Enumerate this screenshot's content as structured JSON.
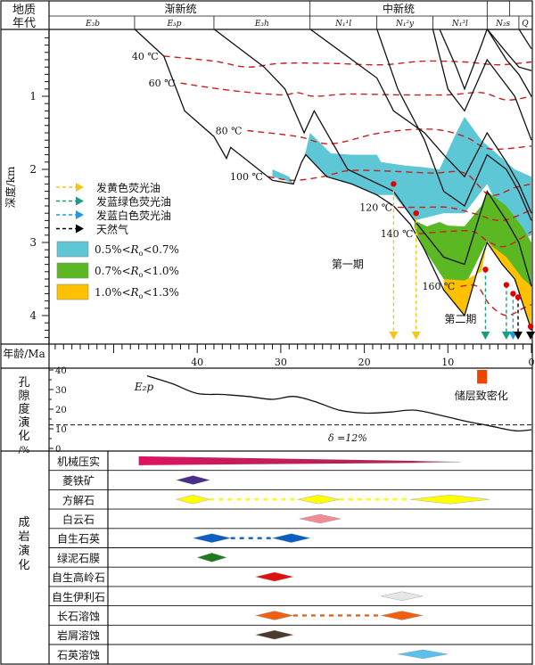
{
  "header": {
    "left_label_line1": "地质",
    "left_label_line2": "年代",
    "epochs": [
      {
        "label": "渐新统",
        "from": 57.5,
        "to": 26.5
      },
      {
        "label": "中新统",
        "from": 26.5,
        "to": 5.3
      },
      {
        "label": "",
        "from": 5.3,
        "to": 2.6
      },
      {
        "label": "",
        "from": 2.6,
        "to": 0
      }
    ],
    "formations": [
      {
        "label": "E₃b",
        "from": 57.5,
        "to": 47.5
      },
      {
        "label": "E₃p",
        "from": 47.5,
        "to": 38.0
      },
      {
        "label": "E₃h",
        "from": 38.0,
        "to": 26.5
      },
      {
        "label": "N₁¹l",
        "from": 26.5,
        "to": 18.5
      },
      {
        "label": "N₁²y",
        "from": 18.5,
        "to": 11.8
      },
      {
        "label": "N₁³l",
        "from": 11.8,
        "to": 5.3
      },
      {
        "label": "N₂s",
        "from": 5.3,
        "to": 1.5
      },
      {
        "label": "Q",
        "from": 1.5,
        "to": 0
      }
    ]
  },
  "chart_data": {
    "type": "burial-history",
    "title": "",
    "xlabel": "年龄/Ma",
    "ylabel": "深度/km",
    "x_range": [
      57.5,
      0
    ],
    "y_range": [
      0,
      4.35
    ],
    "x_ticks": [
      40,
      30,
      20,
      10,
      0
    ],
    "y_ticks": [
      1,
      2,
      3,
      4
    ],
    "burial_curves": [
      [
        [
          47.5,
          0.08
        ],
        [
          44,
          0.45
        ],
        [
          41.5,
          1.2
        ],
        [
          38,
          1.55
        ],
        [
          36.5,
          1.85
        ],
        [
          36,
          1.7
        ],
        [
          31,
          2.15
        ],
        [
          28.5,
          2.2
        ],
        [
          27.5,
          1.9
        ],
        [
          27,
          1.8
        ],
        [
          24.5,
          2.1
        ],
        [
          21.5,
          2.2
        ],
        [
          18.5,
          2.35
        ],
        [
          16.5,
          2.5
        ],
        [
          14.5,
          2.75
        ],
        [
          12.8,
          3.1
        ],
        [
          10.5,
          3.65
        ],
        [
          8,
          4.0
        ],
        [
          6.5,
          3.4
        ],
        [
          5.3,
          3.0
        ],
        [
          3.5,
          3.3
        ],
        [
          2,
          3.5
        ],
        [
          0,
          4.2
        ]
      ],
      [
        [
          38,
          0.08
        ],
        [
          32,
          0.6
        ],
        [
          29.5,
          0.9
        ],
        [
          27.2,
          1.5
        ],
        [
          26,
          1.2
        ],
        [
          22,
          2.0
        ],
        [
          16.5,
          2.3
        ],
        [
          14,
          2.7
        ],
        [
          10.5,
          3.2
        ],
        [
          8,
          3.3
        ],
        [
          5.3,
          2.3
        ],
        [
          3,
          2.7
        ],
        [
          1.5,
          3.0
        ],
        [
          0,
          3.6
        ]
      ],
      [
        [
          26.5,
          0.08
        ],
        [
          18.5,
          0.75
        ],
        [
          16.5,
          1.2
        ],
        [
          12.8,
          1.5
        ],
        [
          10.5,
          1.8
        ],
        [
          8,
          2.1
        ],
        [
          5.3,
          1.5
        ],
        [
          3,
          1.9
        ],
        [
          1.5,
          2.2
        ],
        [
          0,
          2.6
        ]
      ],
      [
        [
          18.5,
          0.08
        ],
        [
          16,
          0.9
        ],
        [
          12.8,
          1.6
        ],
        [
          10.5,
          2.3
        ],
        [
          8,
          2.5
        ],
        [
          5.3,
          1.8
        ],
        [
          3,
          2.0
        ],
        [
          1.5,
          2.3
        ],
        [
          0,
          2.7
        ]
      ],
      [
        [
          11.8,
          0.08
        ],
        [
          10,
          0.9
        ],
        [
          8,
          1.2
        ],
        [
          5.3,
          0.5
        ],
        [
          2,
          1.0
        ],
        [
          0,
          1.6
        ]
      ],
      [
        [
          11,
          0.08
        ],
        [
          9,
          0.6
        ],
        [
          8,
          0.9
        ],
        [
          6,
          0.3
        ],
        [
          5.3,
          0.08
        ],
        [
          3,
          0.5
        ],
        [
          1.5,
          0.7
        ],
        [
          0,
          1.0
        ]
      ],
      [
        [
          5.3,
          0.08
        ],
        [
          3,
          0.4
        ],
        [
          1.5,
          0.6
        ],
        [
          0,
          0.65
        ]
      ],
      [
        [
          1.5,
          0.08
        ],
        [
          0,
          0.35
        ]
      ]
    ],
    "isotherms": [
      {
        "label": "40 ℃",
        "points": [
          [
            44,
            0.45
          ],
          [
            38,
            0.52
          ],
          [
            34,
            0.6
          ],
          [
            30,
            0.55
          ],
          [
            24,
            0.55
          ],
          [
            18,
            0.57
          ],
          [
            13,
            0.52
          ],
          [
            8,
            0.53
          ],
          [
            4,
            0.57
          ],
          [
            0,
            0.53
          ]
        ]
      },
      {
        "label": "60 ℃",
        "points": [
          [
            42,
            0.82
          ],
          [
            36,
            0.92
          ],
          [
            30,
            0.98
          ],
          [
            28,
            0.95
          ],
          [
            26,
            1.0
          ],
          [
            22,
            0.97
          ],
          [
            16,
            0.98
          ],
          [
            10,
            0.98
          ],
          [
            6,
            0.95
          ],
          [
            3,
            1.05
          ],
          [
            0,
            1.0
          ]
        ]
      },
      {
        "label": "80 ℃",
        "points": [
          [
            34,
            1.47
          ],
          [
            28,
            1.55
          ],
          [
            24,
            1.65
          ],
          [
            18,
            1.5
          ],
          [
            12,
            1.45
          ],
          [
            8,
            1.55
          ],
          [
            5,
            1.72
          ],
          [
            0,
            1.68
          ]
        ]
      },
      {
        "label": "100 ℃",
        "points": [
          [
            31.5,
            2.1
          ],
          [
            28.5,
            2.15
          ],
          [
            25,
            2.1
          ],
          [
            22,
            2.02
          ],
          [
            18,
            2.02
          ],
          [
            12,
            2.05
          ],
          [
            8,
            2.05
          ],
          [
            5,
            2.35
          ],
          [
            2,
            2.25
          ],
          [
            0,
            2.2
          ]
        ]
      },
      {
        "label": "120 ℃",
        "points": [
          [
            16,
            2.52
          ],
          [
            13,
            2.52
          ],
          [
            10,
            2.52
          ],
          [
            7,
            2.6
          ],
          [
            4,
            2.7
          ],
          [
            2,
            2.65
          ],
          [
            0,
            2.55
          ]
        ]
      },
      {
        "label": "140 ℃",
        "points": [
          [
            13.5,
            2.88
          ],
          [
            10,
            2.85
          ],
          [
            7,
            2.85
          ],
          [
            5,
            3.0
          ],
          [
            3,
            3.05
          ],
          [
            0,
            2.85
          ]
        ]
      },
      {
        "label": "160 ℃",
        "points": [
          [
            8.5,
            3.6
          ],
          [
            6.5,
            3.6
          ],
          [
            5,
            3.85
          ],
          [
            3,
            4.0
          ],
          [
            1,
            3.9
          ],
          [
            0,
            3.85
          ]
        ]
      }
    ],
    "maturity_zones": [
      {
        "name": "0.5%<Ro<0.7%",
        "color": "#5ec7d6",
        "polygon": [
          [
            31,
            2.0
          ],
          [
            29,
            2.1
          ],
          [
            28.5,
            2.2
          ],
          [
            27.5,
            1.9
          ],
          [
            27,
            1.75
          ],
          [
            26.5,
            1.5
          ],
          [
            24,
            1.78
          ],
          [
            21.5,
            1.8
          ],
          [
            18.5,
            1.8
          ],
          [
            18,
            1.9
          ],
          [
            15,
            1.95
          ],
          [
            13,
            1.97
          ],
          [
            11,
            2.0
          ],
          [
            9,
            1.5
          ],
          [
            8,
            1.28
          ],
          [
            6,
            1.6
          ],
          [
            4,
            1.8
          ],
          [
            2,
            2.0
          ],
          [
            0,
            2.1
          ],
          [
            0,
            2.9
          ],
          [
            2,
            3.0
          ],
          [
            5.3,
            2.2
          ],
          [
            8,
            2.6
          ],
          [
            10.5,
            2.6
          ],
          [
            14,
            2.7
          ],
          [
            16.5,
            2.35
          ],
          [
            18.5,
            2.35
          ],
          [
            21.5,
            2.2
          ],
          [
            24.5,
            2.1
          ],
          [
            27,
            1.8
          ],
          [
            27.5,
            1.9
          ],
          [
            28.5,
            2.2
          ],
          [
            29.5,
            2.15
          ],
          [
            31,
            2.1
          ]
        ]
      },
      {
        "name": "0.7%<Ro<1.0%",
        "color": "#5bb823",
        "polygon": [
          [
            14,
            2.7
          ],
          [
            12.5,
            2.78
          ],
          [
            11,
            2.72
          ],
          [
            10,
            2.77
          ],
          [
            8,
            2.78
          ],
          [
            6,
            2.5
          ],
          [
            5.3,
            2.3
          ],
          [
            3,
            2.5
          ],
          [
            1,
            2.8
          ],
          [
            0,
            3.0
          ],
          [
            0,
            3.7
          ],
          [
            2,
            3.5
          ],
          [
            3.5,
            3.2
          ],
          [
            5.3,
            2.98
          ],
          [
            8,
            3.6
          ],
          [
            10.5,
            3.5
          ],
          [
            12.8,
            3.1
          ],
          [
            14,
            2.8
          ]
        ]
      },
      {
        "name": "1.0%<Ro<1.3%",
        "color": "#ffc000",
        "polygon": [
          [
            10.5,
            3.5
          ],
          [
            8,
            3.52
          ],
          [
            6,
            3.4
          ],
          [
            5.3,
            3.0
          ],
          [
            3,
            3.2
          ],
          [
            1,
            3.5
          ],
          [
            0,
            3.6
          ],
          [
            0,
            4.2
          ],
          [
            2,
            3.5
          ],
          [
            3.5,
            3.3
          ],
          [
            5.3,
            3.0
          ],
          [
            6.5,
            3.4
          ],
          [
            8,
            4.0
          ],
          [
            10.5,
            3.65
          ]
        ]
      }
    ],
    "charge_events": [
      {
        "type": "发黄色荧光油",
        "color": "#f5c518",
        "age": 16.5,
        "depth": 2.2
      },
      {
        "type": "发黄色荧光油",
        "color": "#f5c518",
        "age": 13.8,
        "depth": 2.6
      },
      {
        "type": "发蓝绿色荧光油",
        "color": "#1a9e80",
        "age": 5.5,
        "depth": 3.37
      },
      {
        "type": "发蓝绿色荧光油",
        "color": "#1a9e80",
        "age": 3.0,
        "depth": 3.58
      },
      {
        "type": "发蓝白色荧光油",
        "color": "#1e9be0",
        "age": 2.2,
        "depth": 3.7
      },
      {
        "type": "天然气",
        "color": "#000000",
        "age": 1.6,
        "depth": 3.75
      },
      {
        "type": "天然气",
        "color": "#000000",
        "age": 0.1,
        "depth": 4.15
      }
    ],
    "annotations": [
      {
        "text": "第一期",
        "age": 22,
        "depth": 3.35
      },
      {
        "text": "第二期",
        "age": 8.5,
        "depth": 4.1
      }
    ],
    "legend": {
      "position": "left-middle",
      "arrows": [
        {
          "label": "发黄色荧光油",
          "color": "#f5c518"
        },
        {
          "label": "发蓝绿色荧光油",
          "color": "#1a9e80"
        },
        {
          "label": "发蓝白色荧光油",
          "color": "#1e9be0"
        },
        {
          "label": "天然气",
          "color": "#000000"
        }
      ],
      "zones": [
        {
          "label_pre": "0.5%<",
          "label_var": "R",
          "label_sub": "o",
          "label_post": "<0.7%",
          "color": "#5ec7d6"
        },
        {
          "label_pre": "0.7%<",
          "label_var": "R",
          "label_sub": "o",
          "label_post": "<1.0%",
          "color": "#5bb823"
        },
        {
          "label_pre": "1.0%<",
          "label_var": "R",
          "label_sub": "o",
          "label_post": "<1.3%",
          "color": "#ffc000"
        }
      ]
    },
    "porosity": {
      "ylabel": [
        "孔",
        "隙",
        "度",
        "演",
        "化",
        "/%"
      ],
      "y_ticks": [
        0,
        10,
        20,
        30,
        40
      ],
      "y_range": [
        0,
        42
      ],
      "curve_label": "E₂p",
      "curve": [
        [
          46,
          37
        ],
        [
          43,
          33
        ],
        [
          40,
          28
        ],
        [
          37,
          27.5
        ],
        [
          34,
          26.5
        ],
        [
          31,
          25
        ],
        [
          28.5,
          26.5
        ],
        [
          26,
          24
        ],
        [
          23,
          19.5
        ],
        [
          20,
          18
        ],
        [
          17,
          18.5
        ],
        [
          14,
          19.5
        ],
        [
          11,
          17
        ],
        [
          8,
          14
        ],
        [
          5,
          11.5
        ],
        [
          2,
          9
        ],
        [
          0,
          9.5
        ]
      ],
      "threshold_value": 12,
      "threshold_label": "δ =12%",
      "tight_reservoir_marker": {
        "label": "储层致密化",
        "age_from": 6.5,
        "age_to": 5.3,
        "y_from": 33,
        "y_to": 40,
        "color": "#ee4400"
      }
    },
    "diagenesis": {
      "section_label": [
        "成",
        "岩",
        "演",
        "化"
      ],
      "rows": [
        {
          "name": "机械压实",
          "type": "wedge",
          "color": "#dc1463",
          "from": 47,
          "to": 8.5
        },
        {
          "name": "菱铁矿",
          "diamonds": [
            {
              "from": 42.5,
              "to": 38.5
            }
          ],
          "color": "#4b2d8c"
        },
        {
          "name": "方解石",
          "diamonds": [
            {
              "from": 42.5,
              "to": 38.5
            },
            {
              "from": 28,
              "to": 23
            },
            {
              "from": 14.5,
              "to": 5
            }
          ],
          "dashed": true,
          "color": "#ffff00"
        },
        {
          "name": "白云石",
          "diamonds": [
            {
              "from": 27.8,
              "to": 22.8
            }
          ],
          "color": "#f28b95"
        },
        {
          "name": "自生石英",
          "diamonds": [
            {
              "from": 40.5,
              "to": 36
            },
            {
              "from": 31,
              "to": 26.5
            }
          ],
          "dashed": true,
          "color": "#0b5fc0"
        },
        {
          "name": "绿泥石膜",
          "diamonds": [
            {
              "from": 40,
              "to": 36.5
            }
          ],
          "color": "#1e7a1e"
        },
        {
          "name": "自生高岭石",
          "diamonds": [
            {
              "from": 33,
              "to": 28.5
            }
          ],
          "color": "#e01010"
        },
        {
          "name": "自生伊利石",
          "diamonds": [
            {
              "from": 18,
              "to": 13
            }
          ],
          "color": "#e6e6e6"
        },
        {
          "name": "长石溶蚀",
          "diamonds": [
            {
              "from": 33,
              "to": 28.5
            },
            {
              "from": 18,
              "to": 13
            }
          ],
          "dashed": true,
          "color": "#f06010"
        },
        {
          "name": "岩屑溶蚀",
          "diamonds": [
            {
              "from": 33,
              "to": 28.5
            }
          ],
          "color": "#4a3a30"
        },
        {
          "name": "石英溶蚀",
          "diamonds": [
            {
              "from": 16,
              "to": 10
            }
          ],
          "color": "#5ac0f0"
        }
      ]
    }
  }
}
